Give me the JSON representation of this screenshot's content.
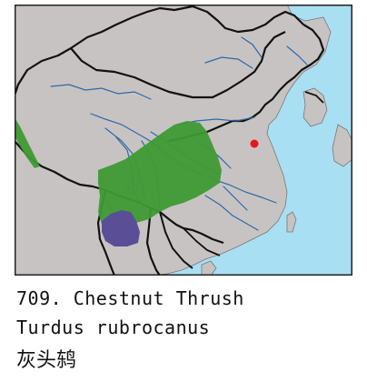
{
  "caption": {
    "line1": "709. Chestnut Thrush",
    "line2": "Turdus rubrocanus",
    "line3": "灰头鸫"
  },
  "legend_colors": {
    "resident_range": "#3f9a34",
    "winter_range": "#5a4e96",
    "vagrant_record": "#e8141c",
    "land": "#c8c3c3",
    "sea": "#a9dff2",
    "border": "#111111",
    "river": "#2b6aa8"
  }
}
